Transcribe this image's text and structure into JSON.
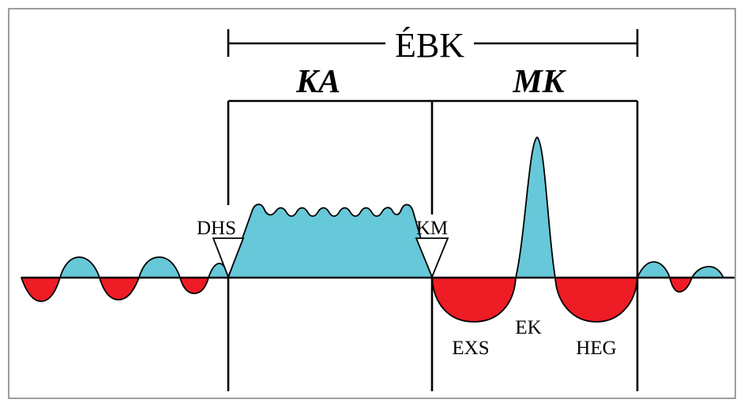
{
  "labels": {
    "ebk": "ÉBK",
    "ka": "KA",
    "mk": "MK",
    "dhs": "DHS",
    "km": "KM",
    "exs": "EXS",
    "ek": "EK",
    "heg": "HEG"
  },
  "colors": {
    "positive_fill": "#66c8d8",
    "negative_fill": "#ee1c25",
    "outline": "#000000",
    "frame": "#7f7f7f"
  }
}
